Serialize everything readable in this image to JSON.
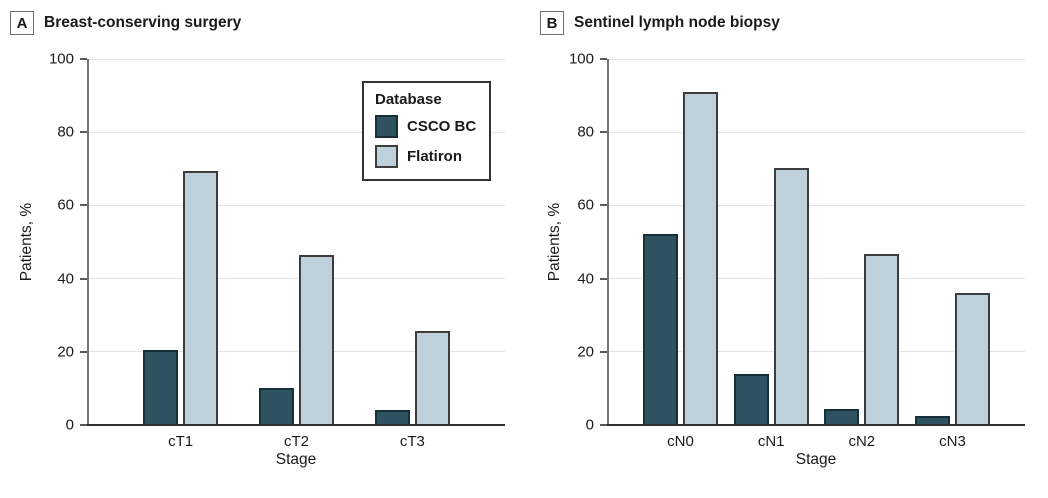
{
  "figure": {
    "panels": [
      {
        "letter": "A",
        "title": "Breast-conserving surgery",
        "xlabel": "Stage",
        "ylabel": "Patients, %"
      },
      {
        "letter": "B",
        "title": "Sentinel lymph node biopsy",
        "xlabel": "Stage",
        "ylabel": "Patients, %"
      }
    ],
    "legend": {
      "title": "Database",
      "entries": [
        {
          "label": "CSCO BC",
          "color": "#2e5260",
          "border": "#16303a"
        },
        {
          "label": "Flatiron",
          "color": "#bed1da",
          "border": "#3d3d3d"
        }
      ]
    },
    "colors": {
      "background": "#ffffff",
      "gridline": "#e4e4e4",
      "y_axis": "#757575",
      "x_axis": "#2f2f2f",
      "text": "#1a1a1a"
    }
  },
  "chart_data": [
    {
      "type": "bar",
      "panel": "A",
      "title": "Breast-conserving surgery",
      "categories": [
        "cT1",
        "cT2",
        "cT3"
      ],
      "series": [
        {
          "name": "CSCO BC",
          "color": "#2e5260",
          "border": "#16303a",
          "values": [
            20.5,
            10,
            4.2
          ]
        },
        {
          "name": "Flatiron",
          "color": "#bed1da",
          "border": "#3d3d3d",
          "values": [
            69.5,
            46.5,
            25.7
          ]
        }
      ],
      "xlabel": "Stage",
      "ylabel": "Patients, %",
      "ylim": [
        0,
        100
      ],
      "yticks": [
        0,
        20,
        40,
        60,
        80,
        100
      ],
      "grid": true,
      "legend_position": "upper right inside plot"
    },
    {
      "type": "bar",
      "panel": "B",
      "title": "Sentinel lymph node biopsy",
      "categories": [
        "cN0",
        "cN1",
        "cN2",
        "cN3"
      ],
      "series": [
        {
          "name": "CSCO BC",
          "color": "#2e5260",
          "border": "#16303a",
          "values": [
            52.2,
            14,
            4.4,
            2.5
          ]
        },
        {
          "name": "Flatiron",
          "color": "#bed1da",
          "border": "#3d3d3d",
          "values": [
            91,
            70.3,
            46.8,
            36
          ]
        }
      ],
      "xlabel": "Stage",
      "ylabel": "Patients, %",
      "ylim": [
        0,
        100
      ],
      "yticks": [
        0,
        20,
        40,
        60,
        80,
        100
      ],
      "grid": true,
      "legend_position": "none"
    }
  ]
}
